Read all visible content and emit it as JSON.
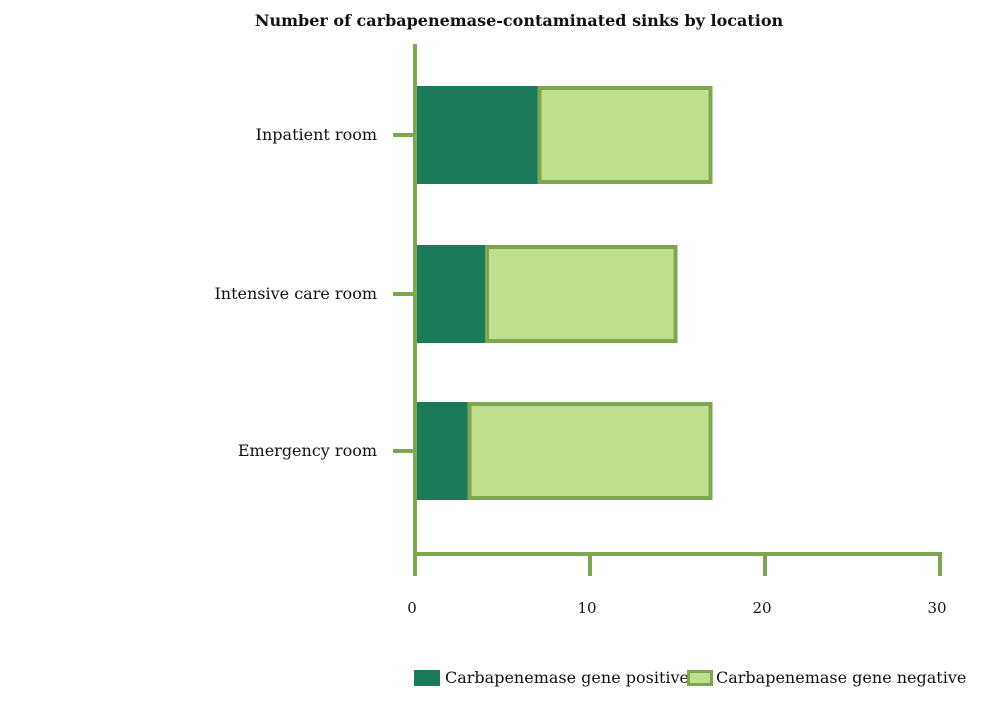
{
  "chart_data": {
    "type": "bar",
    "orientation": "horizontal",
    "stacked": true,
    "title": "Number of carbapenemase-contaminated sinks by location",
    "xlabel": "",
    "ylabel": "",
    "categories": [
      "Inpatient room",
      "Intensive care room",
      "Emergency room"
    ],
    "series": [
      {
        "name": "Carbapenemase gene positive",
        "values": [
          7,
          4,
          3
        ],
        "color": "#1b7a5a"
      },
      {
        "name": "Carbapenemase gene negative",
        "values": [
          10,
          11,
          14
        ],
        "color": "#bfdf8c",
        "border": "#7ea650"
      }
    ],
    "xlim": [
      0,
      30
    ],
    "xticks": [
      0,
      10,
      20,
      30
    ],
    "grid": false,
    "legend_position": "bottom",
    "axis_color": "#7ea650"
  }
}
